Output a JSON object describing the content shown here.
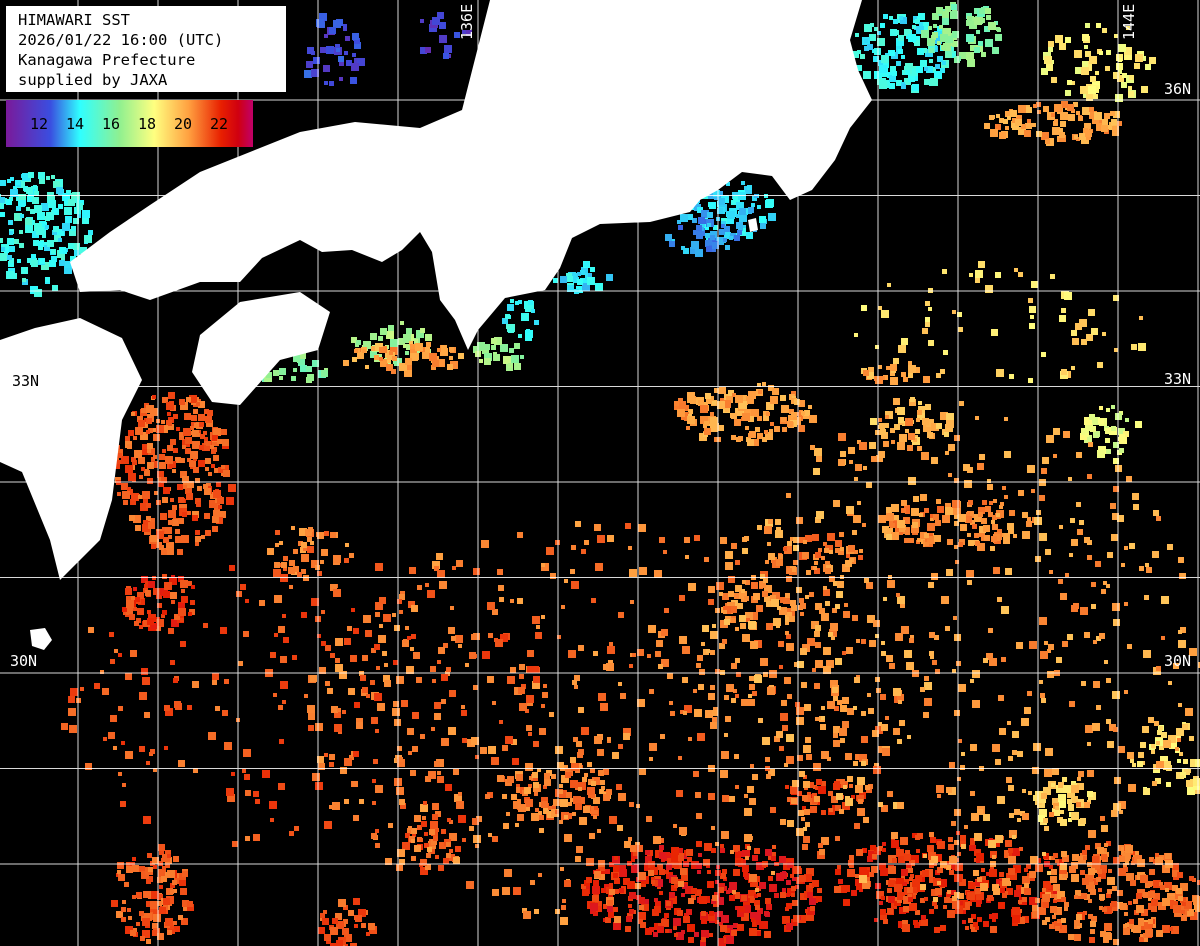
{
  "info": {
    "title": "HIMAWARI SST",
    "datetime": "2026/01/22 16:00 (UTC)",
    "region": "Kanagawa Prefecture",
    "credit": "supplied by JAXA"
  },
  "colorbar": {
    "ticks": [
      "12",
      "14",
      "16",
      "18",
      "20",
      "22"
    ],
    "unit_range": [
      11,
      23
    ],
    "colors": [
      "#7a1a9a",
      "#3a4ee0",
      "#30ffff",
      "#90f090",
      "#ffff80",
      "#ffa040",
      "#e82000",
      "#c0006a"
    ]
  },
  "grid": {
    "lon_labels": [
      "136E",
      "144E"
    ],
    "lat_labels_left": [
      "33N",
      "30N"
    ],
    "lat_labels_right": [
      "36N",
      "33N",
      "30N"
    ]
  },
  "colors": {
    "land": "#ffffff",
    "no_data": "#000000",
    "grid": "#ffffff"
  }
}
